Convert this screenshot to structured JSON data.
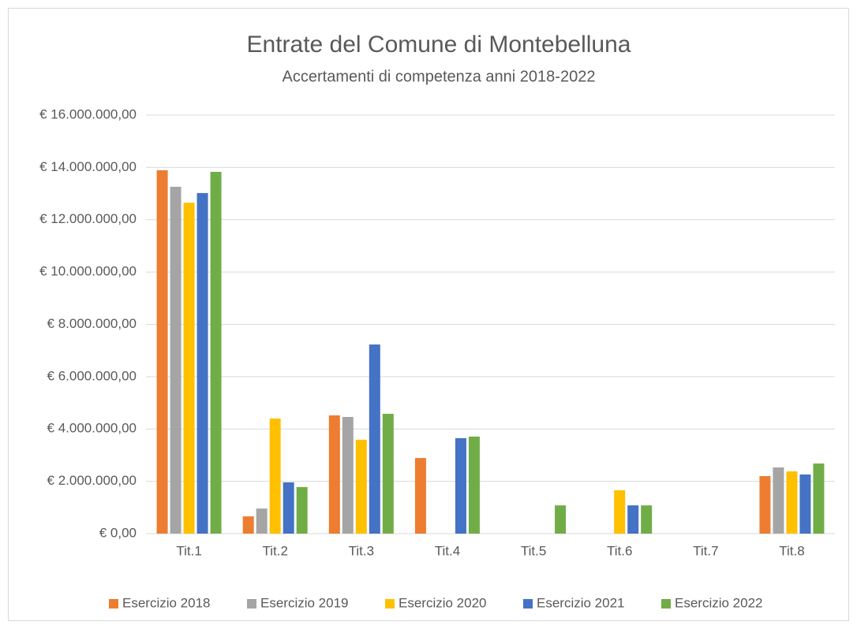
{
  "chart_data": {
    "type": "bar",
    "title": "Entrate del Comune di Montebelluna",
    "subtitle": "Accertamenti di competenza anni 2018-2022",
    "categories": [
      "Tit.1",
      "Tit.2",
      "Tit.3",
      "Tit.4",
      "Tit.5",
      "Tit.6",
      "Tit.7",
      "Tit.8"
    ],
    "series": [
      {
        "name": "Esercizio 2018",
        "color": "#ed7d31",
        "values": [
          13890000,
          660000,
          4520000,
          2890000,
          0,
          0,
          0,
          2200000
        ]
      },
      {
        "name": "Esercizio 2019",
        "color": "#a5a5a5",
        "values": [
          13260000,
          960000,
          4460000,
          0,
          0,
          0,
          0,
          2530000
        ]
      },
      {
        "name": "Esercizio 2020",
        "color": "#ffc000",
        "values": [
          12650000,
          4400000,
          3590000,
          0,
          0,
          1660000,
          0,
          2380000
        ]
      },
      {
        "name": "Esercizio 2021",
        "color": "#4472c4",
        "values": [
          13020000,
          1960000,
          7230000,
          3650000,
          0,
          1080000,
          0,
          2260000
        ]
      },
      {
        "name": "Esercizio 2022",
        "color": "#70ad47",
        "values": [
          13830000,
          1780000,
          4580000,
          3710000,
          1080000,
          1080000,
          0,
          2680000
        ]
      }
    ],
    "ylim": [
      0,
      16000000
    ],
    "yticks": [
      {
        "value": 0,
        "label": "€ 0,00"
      },
      {
        "value": 2000000,
        "label": "€ 2.000.000,00"
      },
      {
        "value": 4000000,
        "label": "€ 4.000.000,00"
      },
      {
        "value": 6000000,
        "label": "€ 6.000.000,00"
      },
      {
        "value": 8000000,
        "label": "€ 8.000.000,00"
      },
      {
        "value": 10000000,
        "label": "€ 10.000.000,00"
      },
      {
        "value": 12000000,
        "label": "€ 12.000.000,00"
      },
      {
        "value": 14000000,
        "label": "€ 14.000.000,00"
      },
      {
        "value": 16000000,
        "label": "€ 16.000.000,00"
      }
    ],
    "grid": true,
    "legend": "bottom"
  }
}
